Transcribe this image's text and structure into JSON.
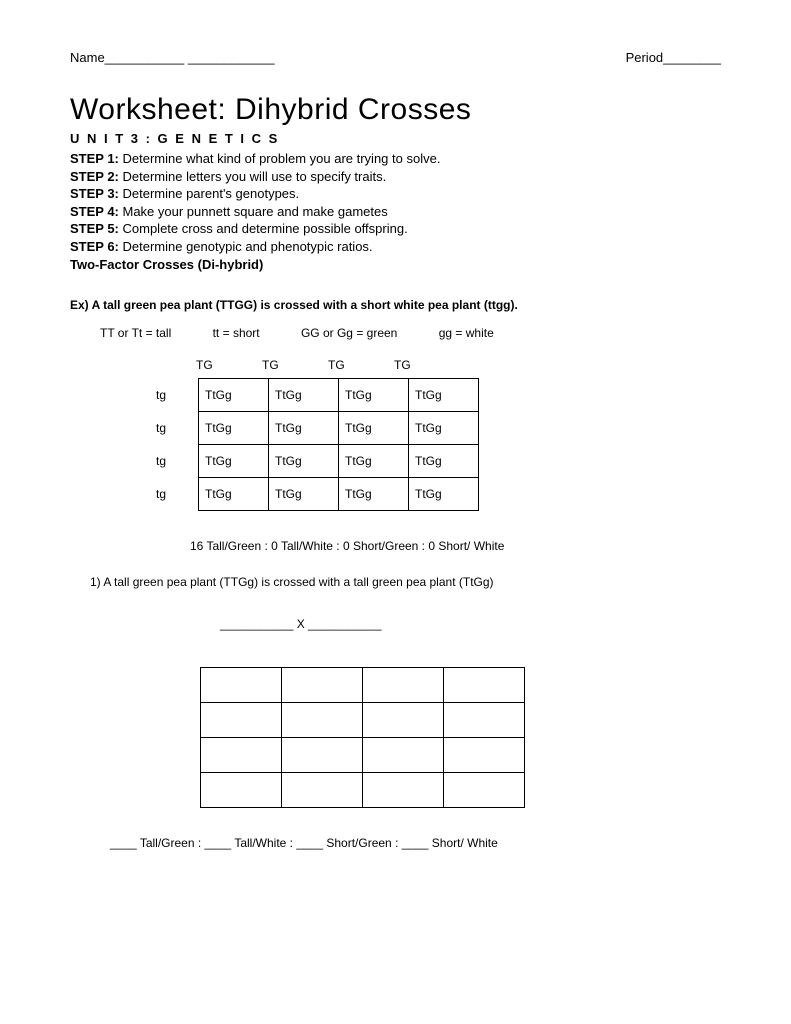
{
  "header": {
    "name_label": "Name___________ ____________",
    "period_label": "Period________"
  },
  "title": "Worksheet: Dihybrid Crosses",
  "unit": "U N I T 3 : G E N E T I C S",
  "steps": [
    {
      "label": "STEP 1:",
      "text": " Determine what kind of problem you are trying to solve."
    },
    {
      "label": "STEP 2:",
      "text": " Determine letters you will use to specify traits."
    },
    {
      "label": "STEP 3:",
      "text": " Determine parent's genotypes."
    },
    {
      "label": "STEP 4:",
      "text": " Make your punnett square and make gametes"
    },
    {
      "label": "STEP 5:",
      "text": " Complete cross and determine possible offspring."
    },
    {
      "label": "STEP 6:",
      "text": " Determine genotypic and phenotypic ratios."
    }
  ],
  "subtitle": "Two-Factor Crosses (Di-hybrid)",
  "example_text": "Ex) A tall green pea plant (TTGG) is crossed with a short white pea plant (ttgg).",
  "key": {
    "k1": "TT or Tt = tall",
    "k2": "tt = short",
    "k3": "GG or Gg = green",
    "k4": "gg = white"
  },
  "punnett": {
    "col_labels": [
      "TG",
      "TG",
      "TG",
      "TG"
    ],
    "row_labels": [
      "tg",
      "tg",
      "tg",
      "tg"
    ],
    "cells": [
      [
        "TtGg",
        "TtGg",
        "TtGg",
        "TtGg"
      ],
      [
        "TtGg",
        "TtGg",
        "TtGg",
        "TtGg"
      ],
      [
        "TtGg",
        "TtGg",
        "TtGg",
        "TtGg"
      ],
      [
        "TtGg",
        "TtGg",
        "TtGg",
        "TtGg"
      ]
    ]
  },
  "ratio_text": "16 Tall/Green :  0 Tall/White :  0 Short/Green :  0 Short/ White",
  "question1": "1)   A tall green pea plant (TTGg) is crossed with a tall green pea plant (TtGg)",
  "cross_blank": "___________ X ___________",
  "ratio_blank": "____ Tall/Green : ____ Tall/White : ____ Short/Green : ____ Short/ White"
}
